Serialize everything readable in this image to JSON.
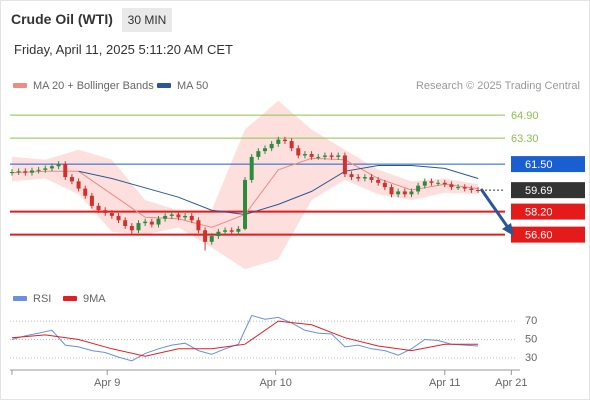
{
  "header": {
    "title": "Crude Oil (WTI)",
    "interval": "30 MIN",
    "timestamp": "Friday, April 11, 2025 5:11:20 AM CET"
  },
  "chart_data": [
    {
      "type": "candlestick",
      "credit": "Research © 2025 Trading Central",
      "xlim": [
        0,
        76
      ],
      "ylim": [
        53.1,
        66.3
      ],
      "up_color": "#2e8b3e",
      "down_color": "#d0312d",
      "open": [
        60.9,
        60.95,
        61.0,
        60.9,
        61.05,
        61.1,
        61.2,
        61.35,
        61.5,
        60.6,
        60.3,
        59.8,
        59.3,
        58.6,
        58.3,
        58.1,
        57.9,
        57.6,
        57.2,
        56.9,
        57.4,
        57.5,
        57.3,
        57.7,
        57.9,
        58.0,
        57.8,
        57.9,
        57.6,
        56.9,
        56.1,
        56.5,
        56.8,
        56.9,
        56.8,
        57.0,
        60.4,
        62.0,
        62.4,
        62.6,
        62.9,
        63.2,
        63.1,
        62.6,
        62.1,
        62.2,
        62.0,
        62.0,
        62.1,
        62.0,
        62.1,
        60.8,
        60.6,
        60.5,
        60.6,
        60.4,
        60.2,
        59.9,
        59.4,
        59.6,
        59.4,
        59.6,
        60.0,
        60.3,
        60.2,
        60.2,
        60.1,
        59.9,
        59.9,
        59.8,
        59.7
      ],
      "high": [
        61.15,
        61.2,
        61.2,
        61.25,
        61.3,
        61.4,
        61.55,
        61.7,
        61.7,
        60.8,
        60.5,
        60.0,
        59.5,
        58.8,
        58.5,
        58.3,
        58.1,
        57.8,
        57.4,
        57.6,
        57.7,
        57.7,
        57.9,
        58.1,
        58.2,
        58.2,
        58.1,
        58.1,
        57.8,
        57.1,
        56.7,
        57.0,
        57.1,
        57.1,
        57.2,
        60.6,
        62.2,
        62.6,
        62.8,
        63.1,
        63.4,
        63.4,
        63.3,
        62.8,
        62.4,
        62.4,
        62.2,
        62.3,
        62.3,
        62.3,
        62.3,
        61.0,
        60.8,
        60.8,
        60.8,
        60.6,
        60.4,
        60.1,
        59.8,
        59.8,
        59.8,
        60.2,
        60.5,
        60.5,
        60.4,
        60.4,
        60.3,
        60.1,
        60.1,
        60.0,
        59.9
      ],
      "low": [
        60.7,
        60.75,
        60.7,
        60.7,
        60.85,
        60.9,
        61.0,
        61.15,
        60.4,
        60.1,
        59.6,
        59.1,
        58.4,
        58.1,
        57.9,
        57.7,
        57.4,
        57.0,
        56.6,
        56.7,
        57.2,
        57.1,
        57.1,
        57.5,
        57.7,
        57.6,
        57.6,
        57.4,
        56.7,
        55.5,
        55.9,
        56.3,
        56.6,
        56.6,
        56.6,
        56.9,
        60.2,
        61.8,
        62.2,
        62.4,
        62.7,
        62.9,
        62.4,
        61.9,
        61.9,
        61.8,
        61.8,
        61.8,
        61.8,
        61.8,
        60.6,
        60.4,
        60.3,
        60.3,
        60.2,
        60.0,
        59.7,
        59.2,
        59.2,
        59.2,
        59.2,
        59.4,
        59.8,
        60.0,
        60.0,
        59.9,
        59.7,
        59.7,
        59.6,
        59.5,
        59.5
      ],
      "close": [
        60.95,
        61.0,
        60.9,
        61.05,
        61.1,
        61.2,
        61.35,
        61.5,
        60.6,
        60.3,
        59.8,
        59.3,
        58.6,
        58.3,
        58.1,
        57.9,
        57.6,
        57.2,
        56.9,
        57.4,
        57.5,
        57.3,
        57.7,
        57.9,
        58.0,
        57.8,
        57.9,
        57.6,
        56.9,
        56.1,
        56.5,
        56.8,
        56.9,
        56.8,
        57.0,
        60.4,
        62.0,
        62.4,
        62.6,
        62.9,
        63.2,
        63.1,
        62.6,
        62.1,
        62.2,
        62.0,
        62.0,
        62.1,
        62.0,
        62.1,
        60.8,
        60.6,
        60.5,
        60.6,
        60.4,
        60.2,
        59.9,
        59.4,
        59.6,
        59.4,
        59.6,
        60.0,
        60.3,
        60.2,
        60.2,
        60.1,
        59.9,
        59.9,
        59.8,
        59.7,
        59.69
      ],
      "indicator_x": [
        0,
        5,
        10,
        15,
        20,
        25,
        30,
        35,
        40,
        45,
        50,
        55,
        60,
        65,
        70
      ],
      "series": [
        {
          "name": "MA 20 + Bollinger Bands",
          "color": "#f08a84",
          "band_color": "#fde0de",
          "values": [
            60.9,
            61.0,
            61.0,
            59.4,
            57.8,
            57.7,
            57.1,
            58.0,
            61.1,
            61.9,
            61.8,
            60.5,
            59.7,
            60.1,
            59.8
          ],
          "upper": [
            62.0,
            61.8,
            62.5,
            61.8,
            59.0,
            58.3,
            58.3,
            63.9,
            65.9,
            63.9,
            62.5,
            61.1,
            60.3,
            60.5,
            60.1
          ],
          "lower": [
            60.3,
            60.5,
            59.4,
            56.8,
            56.6,
            57.1,
            55.7,
            54.2,
            54.9,
            59.0,
            60.4,
            59.4,
            59.0,
            59.5,
            59.4
          ]
        },
        {
          "name": "MA 50",
          "color": "#2b5797",
          "values": [
            null,
            null,
            61.0,
            60.5,
            59.85,
            59.2,
            58.3,
            58.0,
            58.7,
            59.6,
            61.0,
            61.4,
            61.4,
            61.2,
            60.5
          ]
        }
      ],
      "levels": [
        {
          "value": 64.9,
          "label": "64.90",
          "color": "#8bc34a",
          "boxed": false
        },
        {
          "value": 63.3,
          "label": "63.30",
          "color": "#8bc34a",
          "boxed": false
        },
        {
          "value": 61.5,
          "label": "61.50",
          "color": "#1a5fd0",
          "boxed": true
        },
        {
          "value": 59.69,
          "label": "59.69",
          "color": "#333333",
          "boxed": true,
          "dotted": true
        },
        {
          "value": 58.2,
          "label": "58.20",
          "color": "#e31b1b",
          "boxed": true
        },
        {
          "value": 56.6,
          "label": "56.60",
          "color": "#e31b1b",
          "boxed": true
        }
      ]
    },
    {
      "type": "line",
      "xlim": [
        0,
        76
      ],
      "ylim": [
        17,
        82
      ],
      "yticks": [
        30,
        50,
        70
      ],
      "grid": true,
      "xticks": [
        {
          "value": 14.3,
          "label": "Apr 9"
        },
        {
          "value": 39.6,
          "label": "Apr 10"
        },
        {
          "value": 65,
          "label": "Apr 11"
        },
        {
          "value": 75,
          "label": "Apr 21"
        }
      ],
      "series": [
        {
          "name": "RSI",
          "color": "#6b8fe0",
          "x": [
            0,
            2,
            4,
            6,
            8,
            10,
            12,
            14,
            16,
            18,
            20,
            22,
            24,
            26,
            28,
            30,
            32,
            34,
            36,
            38,
            40,
            42,
            44,
            46,
            48,
            50,
            52,
            54,
            56,
            58,
            60,
            62,
            64,
            66,
            68,
            70
          ],
          "values": [
            50,
            54,
            57,
            60,
            44,
            42,
            38,
            36,
            31,
            27,
            35,
            40,
            44,
            46,
            38,
            34,
            40,
            45,
            76,
            72,
            74,
            68,
            60,
            57,
            56,
            42,
            44,
            40,
            38,
            33,
            40,
            50,
            49,
            45,
            44,
            43
          ]
        },
        {
          "name": "9MA",
          "color": "#e02020",
          "x": [
            0,
            5,
            10,
            15,
            20,
            25,
            30,
            35,
            40,
            45,
            50,
            55,
            60,
            65,
            70
          ],
          "values": [
            52,
            55,
            50,
            40,
            32,
            40,
            40,
            45,
            70,
            66,
            52,
            43,
            38,
            45,
            45
          ]
        }
      ]
    }
  ]
}
